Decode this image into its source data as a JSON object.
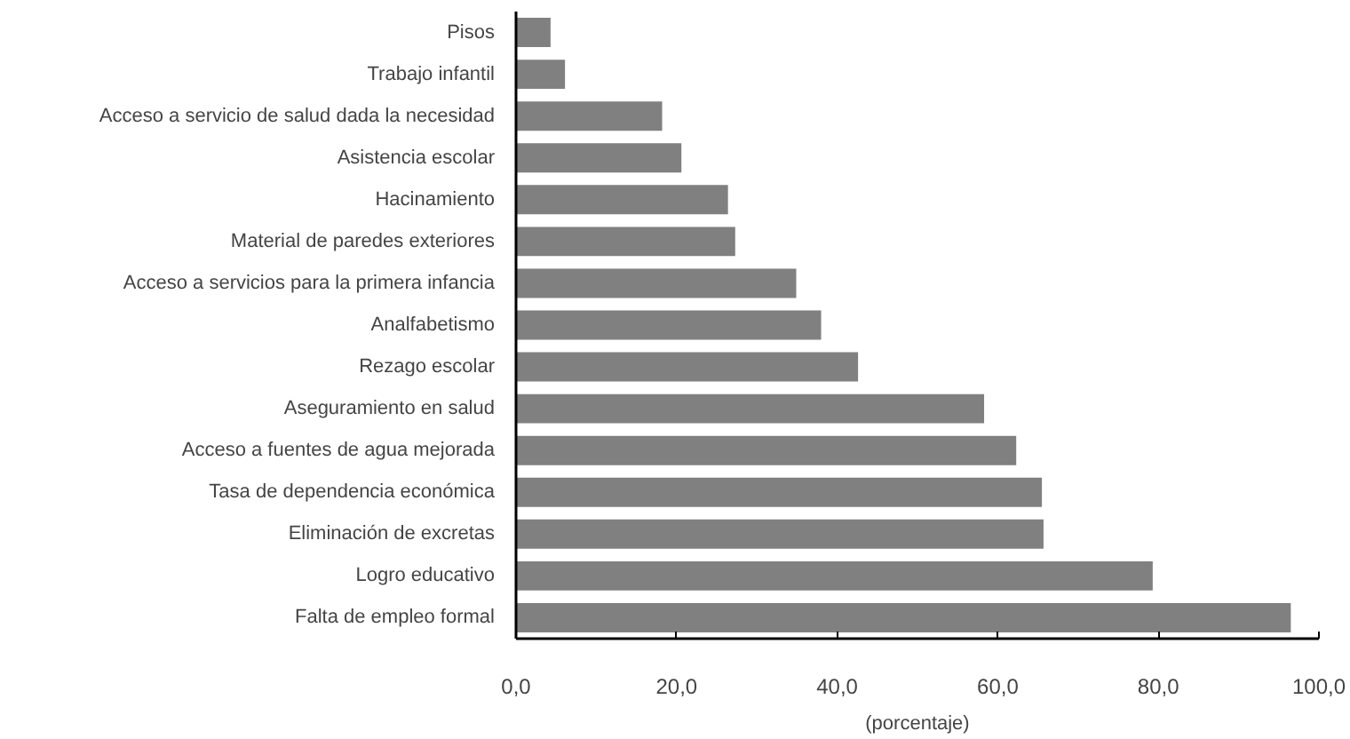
{
  "chart_data": {
    "type": "bar",
    "orientation": "horizontal",
    "xlabel": "(porcentaje)",
    "categories": [
      "Pisos",
      "Trabajo infantil",
      "Acceso a servicio de salud dada la necesidad",
      "Asistencia escolar",
      "Hacinamiento",
      "Material de paredes exteriores",
      "Acceso a servicios para la primera infancia",
      "Analfabetismo",
      "Rezago escolar",
      "Aseguramiento en salud",
      "Acceso a fuentes de agua mejorada",
      "Tasa de dependencia económica",
      "Eliminación de excretas",
      "Logro educativo",
      "Falta de empleo formal"
    ],
    "values": [
      4.3,
      6.1,
      18.2,
      20.6,
      26.4,
      27.3,
      34.9,
      38.0,
      42.6,
      58.3,
      62.3,
      65.5,
      65.7,
      79.3,
      96.5
    ],
    "color": "#808080",
    "xlim": [
      0,
      100
    ],
    "xticks": [
      {
        "value": 0,
        "label": "0,0"
      },
      {
        "value": 20,
        "label": "20,0"
      },
      {
        "value": 40,
        "label": "40,0"
      },
      {
        "value": 60,
        "label": "60,0"
      },
      {
        "value": 80,
        "label": "80,0"
      },
      {
        "value": 100,
        "label": "100,0"
      }
    ],
    "grid": false
  }
}
